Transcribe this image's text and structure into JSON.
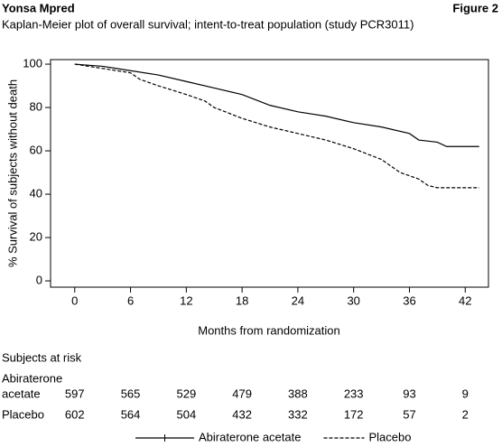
{
  "header": {
    "left": "Yonsa Mpred",
    "right": "Figure 2"
  },
  "chart_data": {
    "type": "line",
    "title": "Kaplan-Meier plot of overall survival; intent-to-treat population (study PCR3011)",
    "x_label": "Months from randomization",
    "y_label": "% Survival of subjects without death",
    "xlim": [
      -2.6,
      44.5
    ],
    "ylim": [
      -2.9,
      102.1
    ],
    "xticks": [
      0,
      6,
      12,
      18,
      24,
      30,
      36,
      42
    ],
    "yticks": [
      0,
      20,
      40,
      60,
      80,
      100
    ],
    "series": [
      {
        "name": "Abiraterone acetate",
        "color": "#000000",
        "style": "solid",
        "x": [
          0,
          3,
          6,
          9,
          12,
          15,
          18,
          21,
          24,
          27,
          30,
          33,
          36,
          37,
          39,
          40,
          43.5
        ],
        "values": [
          100,
          99,
          97,
          95,
          92,
          89,
          86,
          81,
          78,
          76,
          73,
          71,
          68,
          65,
          64,
          62,
          62
        ]
      },
      {
        "name": "Placebo",
        "color": "#000000",
        "style": "dashed",
        "x": [
          0,
          3,
          6,
          7,
          9,
          12,
          14,
          15,
          18,
          21,
          24,
          27,
          30,
          33,
          35,
          37,
          38,
          39,
          43.5
        ],
        "values": [
          100,
          98,
          96,
          93,
          90,
          86,
          83,
          80,
          75,
          71,
          68,
          65,
          61,
          56,
          50,
          47,
          44,
          43,
          43
        ]
      }
    ],
    "risk_table": {
      "title": "Subjects at risk",
      "rows": [
        {
          "label": [
            "Abiraterone",
            "acetate"
          ],
          "counts": [
            "597",
            "565",
            "529",
            "479",
            "388",
            "233",
            "93",
            "9"
          ]
        },
        {
          "label": [
            "Placebo"
          ],
          "counts": [
            "602",
            "564",
            "504",
            "432",
            "332",
            "172",
            "57",
            "2"
          ]
        }
      ]
    }
  }
}
